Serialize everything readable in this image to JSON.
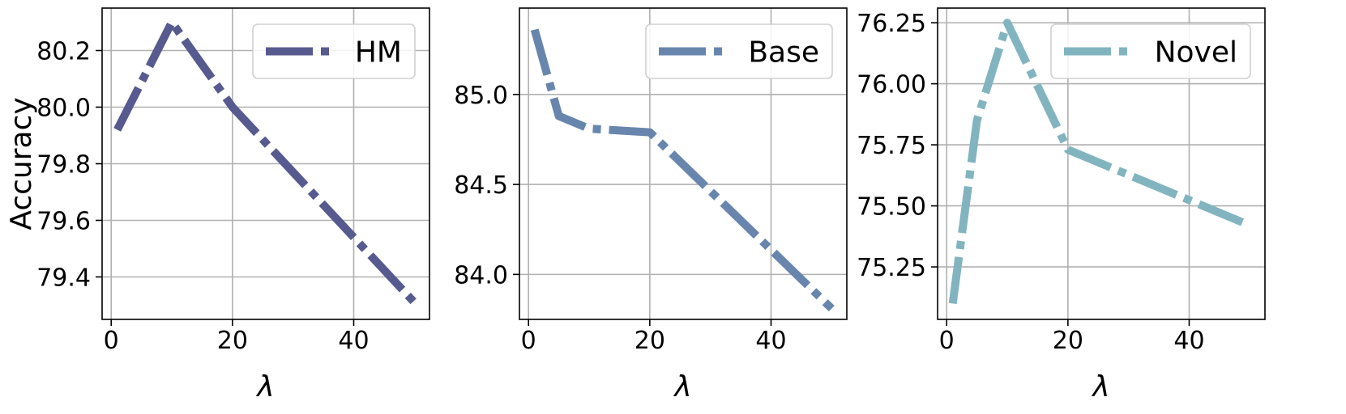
{
  "chart_data": [
    {
      "type": "line",
      "xlabel": "λ",
      "ylabel": "Accuracy",
      "xlim": [
        -1.5,
        52.5
      ],
      "ylim": [
        79.25,
        80.35
      ],
      "xticks": [
        0,
        20,
        40
      ],
      "yticks": [
        79.4,
        79.6,
        79.8,
        80.0,
        80.2
      ],
      "ytick_labels": [
        "79.4",
        "79.6",
        "79.8",
        "80.0",
        "80.2"
      ],
      "grid": true,
      "legend_position": "top-right",
      "series": [
        {
          "name": "HM",
          "color": "#575a8e",
          "x": [
            1,
            10,
            20,
            50
          ],
          "y": [
            79.92,
            80.3,
            80.0,
            79.31
          ]
        }
      ]
    },
    {
      "type": "line",
      "xlabel": "λ",
      "ylabel": "",
      "xlim": [
        -1.5,
        52.5
      ],
      "ylim": [
        83.75,
        85.48
      ],
      "xticks": [
        0,
        20,
        40
      ],
      "yticks": [
        84.0,
        84.5,
        85.0
      ],
      "ytick_labels": [
        "84.0",
        "84.5",
        "85.0"
      ],
      "grid": true,
      "legend_position": "top-right",
      "series": [
        {
          "name": "Base",
          "color": "#6886ad",
          "x": [
            1,
            5,
            10,
            20,
            50
          ],
          "y": [
            85.36,
            84.88,
            84.81,
            84.79,
            83.81
          ]
        }
      ]
    },
    {
      "type": "line",
      "xlabel": "λ",
      "ylabel": "",
      "xlim": [
        -1.5,
        52.5
      ],
      "ylim": [
        75.035,
        76.31
      ],
      "xticks": [
        0,
        20,
        40
      ],
      "yticks": [
        75.25,
        75.5,
        75.75,
        76.0,
        76.25
      ],
      "ytick_labels": [
        "75.25",
        "75.50",
        "75.75",
        "76.00",
        "76.25"
      ],
      "grid": true,
      "legend_position": "top-right",
      "series": [
        {
          "name": "Novel",
          "color": "#82b4c0",
          "x": [
            1,
            5,
            10,
            20,
            50
          ],
          "y": [
            75.1,
            75.85,
            76.25,
            75.73,
            75.42
          ]
        }
      ]
    }
  ]
}
